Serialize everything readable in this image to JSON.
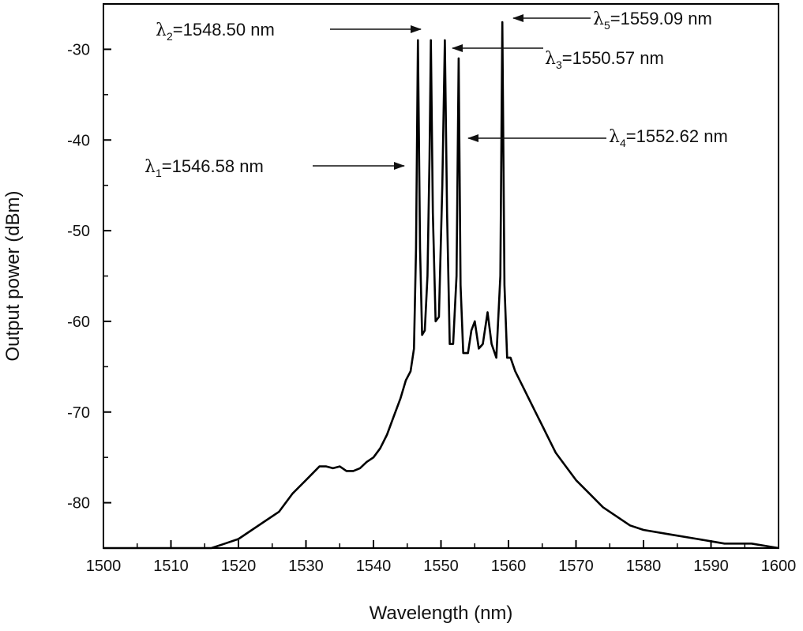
{
  "chart_data": {
    "type": "line",
    "title": "",
    "xlabel": "Wavelength (nm)",
    "ylabel": "Output power (dBm)",
    "xlim": [
      1500,
      1600
    ],
    "ylim": [
      -85,
      -25
    ],
    "x_ticks": [
      1500,
      1510,
      1520,
      1530,
      1540,
      1550,
      1560,
      1570,
      1580,
      1590,
      1600
    ],
    "x_tick_labels": [
      "1500",
      "1510",
      "1520",
      "1530",
      "1540",
      "1550",
      "1560",
      "1570",
      "1580",
      "1590",
      "1600"
    ],
    "y_ticks": [
      -80,
      -70,
      -60,
      -50,
      -40,
      -30
    ],
    "y_tick_labels": [
      "-80",
      "-70",
      "-60",
      "-50",
      "-40",
      "-30"
    ],
    "grid": false,
    "legend": "none",
    "line_color": "#000000",
    "series": [
      {
        "x": [
          1500,
          1516,
          1518,
          1520,
          1522,
          1524,
          1526,
          1528,
          1530,
          1532,
          1533,
          1534,
          1535,
          1536,
          1537,
          1538,
          1539,
          1540,
          1541,
          1542,
          1543,
          1544,
          1544.8,
          1545.5,
          1546,
          1546.3,
          1546.58,
          1546.9,
          1547.2,
          1547.6,
          1548.0,
          1548.3,
          1548.5,
          1548.8,
          1549.2,
          1549.7,
          1550.2,
          1550.57,
          1550.9,
          1551.3,
          1551.8,
          1552.3,
          1552.62,
          1552.9,
          1553.3,
          1554.0,
          1554.5,
          1555.0,
          1555.6,
          1556.2,
          1556.9,
          1557.5,
          1558.2,
          1558.8,
          1559.09,
          1559.4,
          1559.8,
          1560.3,
          1561.0,
          1562.0,
          1563.0,
          1564.0,
          1565.0,
          1566.0,
          1567.0,
          1568.0,
          1570,
          1572,
          1574,
          1576,
          1578,
          1580,
          1584,
          1588,
          1592,
          1596,
          1600
        ],
        "y": [
          -85,
          -85,
          -84.5,
          -84,
          -83,
          -82,
          -81,
          -79,
          -77.5,
          -76,
          -76,
          -76.2,
          -76,
          -76.5,
          -76.5,
          -76.2,
          -75.5,
          -75,
          -74,
          -72.5,
          -70.5,
          -68.5,
          -66.5,
          -65.5,
          -63,
          -52,
          -29,
          -52,
          -61.5,
          -61,
          -55,
          -42,
          -29,
          -48,
          -60,
          -59.5,
          -45,
          -29,
          -48,
          -62.5,
          -62.5,
          -55,
          -31,
          -56,
          -63.5,
          -63.5,
          -61,
          -60,
          -63,
          -62.5,
          -59,
          -62.5,
          -64,
          -55,
          -27,
          -56,
          -64,
          -64,
          -65.5,
          -67,
          -68.5,
          -70,
          -71.5,
          -73,
          -74.5,
          -75.5,
          -77.5,
          -79,
          -80.5,
          -81.5,
          -82.5,
          -83,
          -83.5,
          -84,
          -84.5,
          -84.5,
          -85
        ]
      }
    ],
    "annotations": [
      {
        "symbol": "λ",
        "subscript": "1",
        "text": "=1546.58 nm",
        "wavelength": 1546.58
      },
      {
        "symbol": "λ",
        "subscript": "2",
        "text": "=1548.50 nm",
        "wavelength": 1548.5
      },
      {
        "symbol": "λ",
        "subscript": "3",
        "text": "=1550.57 nm",
        "wavelength": 1550.57
      },
      {
        "symbol": "λ",
        "subscript": "4",
        "text": "=1552.62 nm",
        "wavelength": 1552.62
      },
      {
        "symbol": "λ",
        "subscript": "5",
        "text": "=1559.09 nm",
        "wavelength": 1559.09
      }
    ]
  }
}
